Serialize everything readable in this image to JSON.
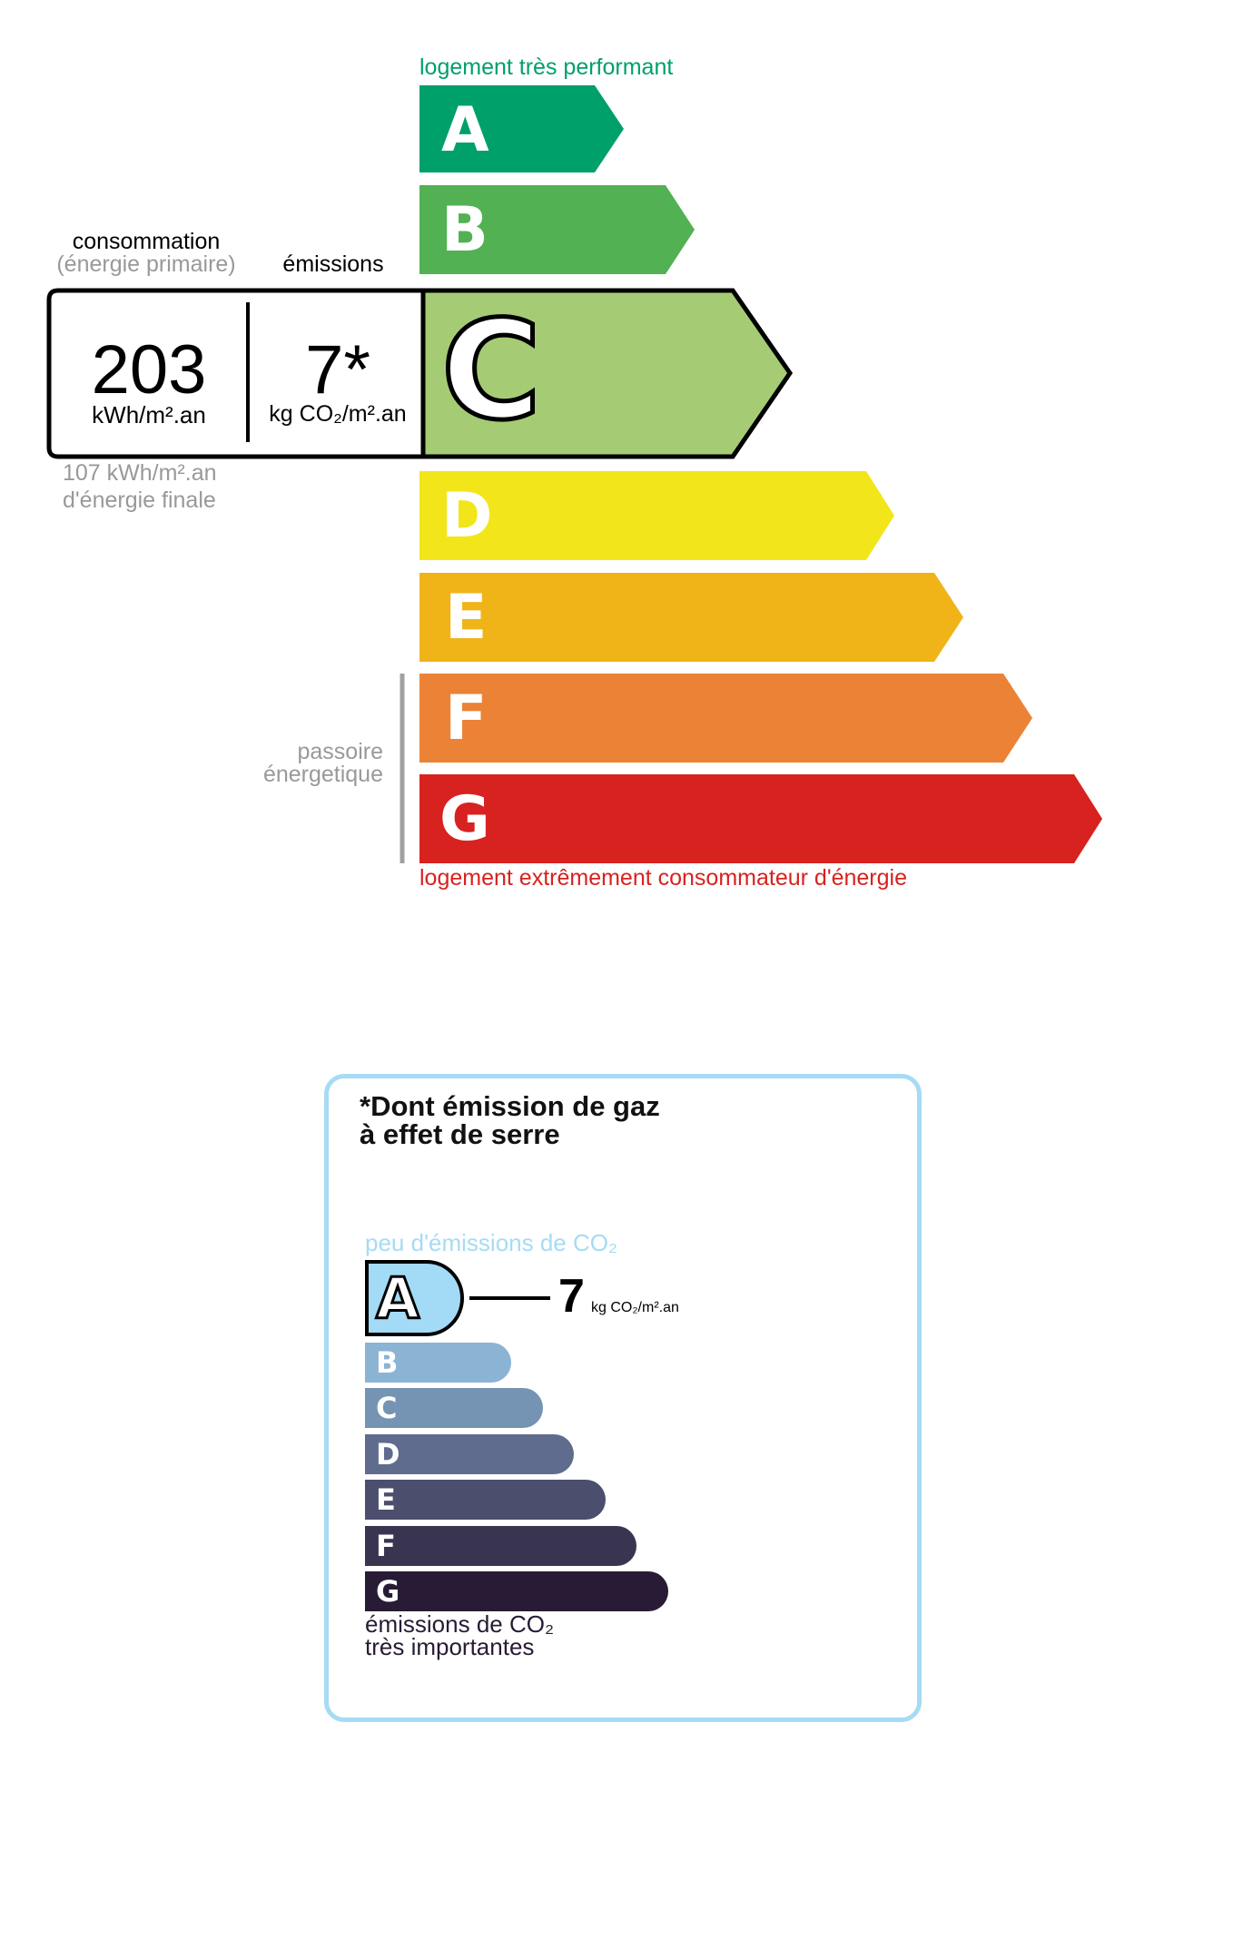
{
  "energy_label": {
    "top_caption": "logement très performant",
    "bottom_caption": "logement extrêmement consommateur d'énergie",
    "passoire_label": [
      "passoire",
      "énergetique"
    ],
    "current_class": "C",
    "classes": [
      {
        "letter": "A",
        "color": "#00a06b"
      },
      {
        "letter": "B",
        "color": "#52b153"
      },
      {
        "letter": "C",
        "color": "#a5cc74"
      },
      {
        "letter": "D",
        "color": "#f2e61b"
      },
      {
        "letter": "E",
        "color": "#f0b419"
      },
      {
        "letter": "F",
        "color": "#eb8235"
      },
      {
        "letter": "G",
        "color": "#d7221f"
      }
    ],
    "consumption_heading": "consommation",
    "consumption_subheading": "(énergie primaire)",
    "emissions_heading": "émissions",
    "consumption_value": "203",
    "consumption_unit": "kWh/m².an",
    "emissions_value": "7*",
    "emissions_unit": "kg CO₂/m².an",
    "final_energy_value": "107 kWh/m².an",
    "final_energy_label": "d'énergie finale"
  },
  "ges_label": {
    "title_line1": "*Dont émission de gaz",
    "title_line2": "à effet de serre",
    "top_caption": "peu d'émissions de CO₂",
    "bottom_caption_line1": "émissions de CO₂",
    "bottom_caption_line2": "très importantes",
    "current_class": "A",
    "value": "7",
    "unit": "kg CO₂/m².an",
    "border_color": "#a6dbf5",
    "classes": [
      {
        "letter": "A",
        "color": "#a3daf6"
      },
      {
        "letter": "B",
        "color": "#8bb3d3"
      },
      {
        "letter": "C",
        "color": "#7593b3"
      },
      {
        "letter": "D",
        "color": "#5f6c8e"
      },
      {
        "letter": "E",
        "color": "#4b4e6d"
      },
      {
        "letter": "F",
        "color": "#393551"
      },
      {
        "letter": "G",
        "color": "#281b35"
      }
    ]
  }
}
